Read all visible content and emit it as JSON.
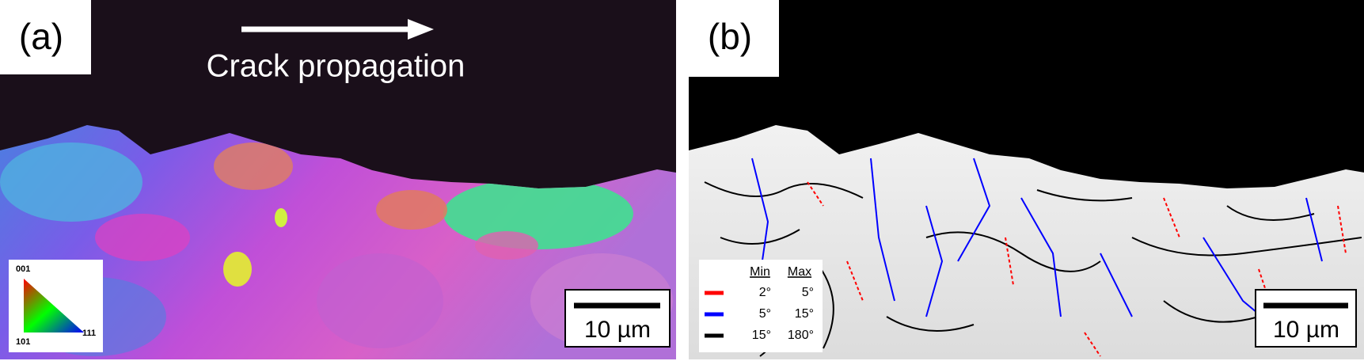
{
  "panels": [
    {
      "label": "(a)",
      "annotation": "Crack propagation",
      "scale_bar": "10 µm",
      "ipf_legend": [
        "001",
        "101",
        "111"
      ]
    },
    {
      "label": "(b)",
      "scale_bar": "10 µm",
      "legend": {
        "headers": [
          "Min",
          "Max"
        ],
        "rows": [
          {
            "color": "#ff0000",
            "min": "2°",
            "max": "5°"
          },
          {
            "color": "#0000ff",
            "min": "5°",
            "max": "15°"
          },
          {
            "color": "#000000",
            "min": "15°",
            "max": "180°"
          }
        ]
      }
    }
  ]
}
